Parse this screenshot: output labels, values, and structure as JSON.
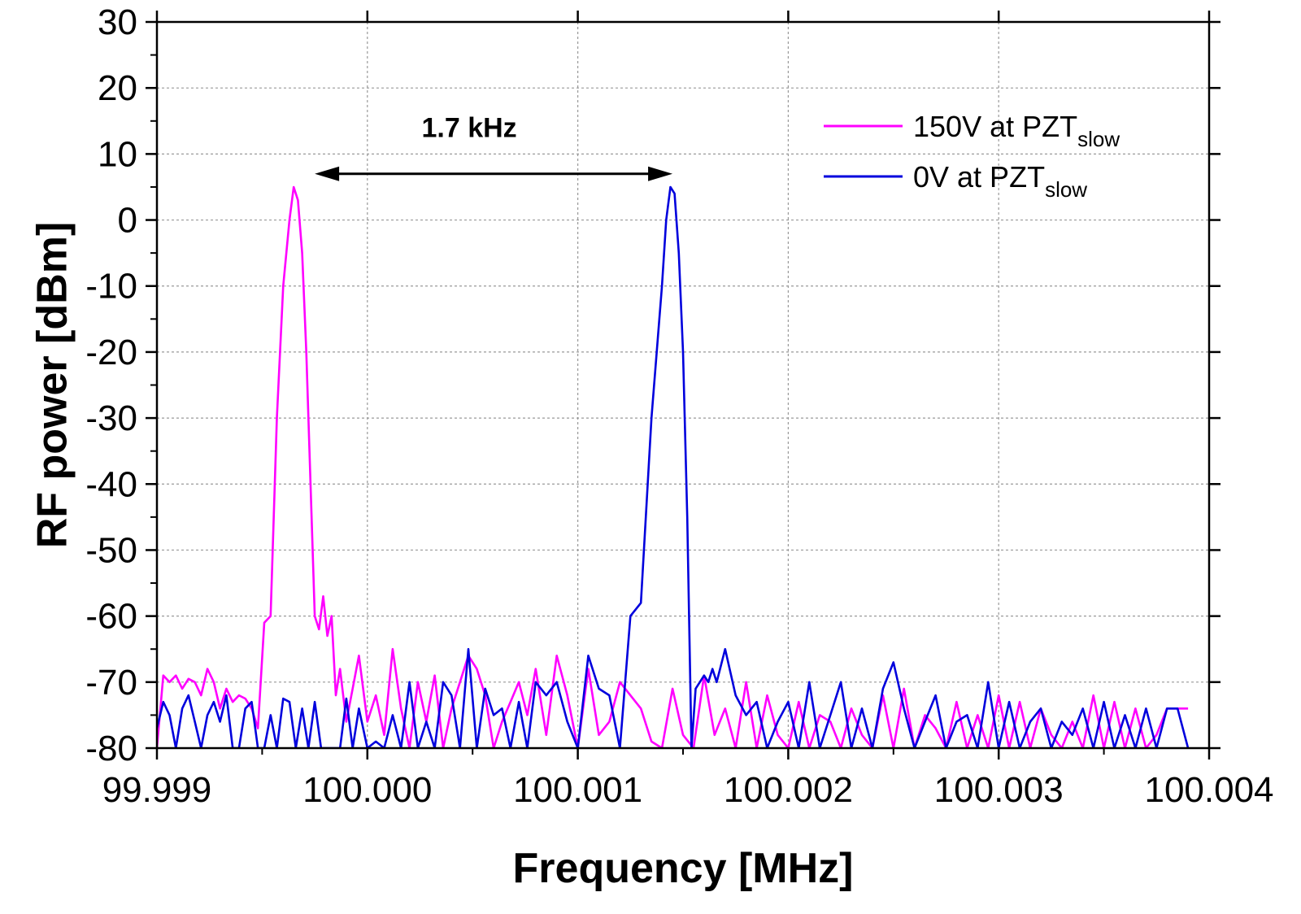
{
  "chart_data": {
    "type": "line",
    "xlabel": "Frequency [MHz]",
    "ylabel": "RF power [dBm]",
    "xlim": [
      99.999,
      100.004
    ],
    "ylim": [
      -80,
      30
    ],
    "xticks": [
      "99.999",
      "100.000",
      "100.001",
      "100.002",
      "100.003",
      "100.004"
    ],
    "yticks": [
      "30",
      "20",
      "10",
      "0",
      "-10",
      "-20",
      "-30",
      "-40",
      "-50",
      "-60",
      "-70",
      "-80"
    ],
    "grid": true,
    "legend_position": "top-right",
    "annotation": {
      "text": "1.7 kHz",
      "arrow_from": 99.99975,
      "arrow_to": 100.00145,
      "arrow_y": 7
    },
    "series": [
      {
        "name": "150V at PZT",
        "name_subscript": "slow",
        "color": "#ff00ff",
        "x": [
          99.999,
          99.99903,
          99.99906,
          99.99909,
          99.99912,
          99.99915,
          99.99918,
          99.99921,
          99.99924,
          99.99927,
          99.9993,
          99.99933,
          99.99936,
          99.99939,
          99.99942,
          99.99945,
          99.99948,
          99.99951,
          99.99954,
          99.99957,
          99.9996,
          99.99963,
          99.99965,
          99.99967,
          99.99969,
          99.99971,
          99.99973,
          99.99975,
          99.99977,
          99.99979,
          99.99981,
          99.99983,
          99.99985,
          99.99987,
          99.9999,
          99.99993,
          99.99996,
          100.0,
          100.00004,
          100.00008,
          100.00012,
          100.00016,
          100.0002,
          100.00024,
          100.00028,
          100.00032,
          100.00036,
          100.0004,
          100.00044,
          100.00048,
          100.00052,
          100.00056,
          100.0006,
          100.00064,
          100.00068,
          100.00072,
          100.00076,
          100.0008,
          100.00085,
          100.0009,
          100.00095,
          100.001,
          100.00105,
          100.0011,
          100.00115,
          100.0012,
          100.00125,
          100.0013,
          100.00135,
          100.0014,
          100.00145,
          100.0015,
          100.00155,
          100.0016,
          100.00165,
          100.0017,
          100.00175,
          100.0018,
          100.00185,
          100.0019,
          100.00195,
          100.002,
          100.00205,
          100.0021,
          100.00215,
          100.0022,
          100.00225,
          100.0023,
          100.00235,
          100.0024,
          100.00245,
          100.0025,
          100.00255,
          100.0026,
          100.00265,
          100.0027,
          100.00275,
          100.0028,
          100.00285,
          100.0029,
          100.00295,
          100.003,
          100.00305,
          100.0031,
          100.00315,
          100.0032,
          100.00325,
          100.0033,
          100.00335,
          100.0034,
          100.00345,
          100.0035,
          100.00355,
          100.0036,
          100.00365,
          100.0037,
          100.00375,
          100.0038,
          100.00385,
          100.0039
        ],
        "y": [
          -80,
          -69,
          -70,
          -69,
          -71,
          -69.5,
          -70,
          -72,
          -68,
          -70,
          -74,
          -71,
          -73,
          -72,
          -72.5,
          -74,
          -77,
          -61,
          -60,
          -30,
          -10,
          0,
          5,
          3,
          -5,
          -20,
          -40,
          -60,
          -62,
          -57,
          -63,
          -60,
          -72,
          -68,
          -76,
          -71,
          -66,
          -76,
          -72,
          -78,
          -65,
          -74,
          -80,
          -70,
          -76,
          -69,
          -80,
          -74,
          -70,
          -66,
          -68,
          -72,
          -80,
          -76,
          -73,
          -70,
          -75,
          -68,
          -78,
          -66,
          -72,
          -80,
          -68,
          -78,
          -76,
          -70,
          -72,
          -74,
          -79,
          -80,
          -71,
          -78,
          -80,
          -69,
          -78,
          -74,
          -80,
          -70,
          -80,
          -72,
          -78,
          -80,
          -73,
          -80,
          -75,
          -76,
          -80,
          -74,
          -78,
          -80,
          -72,
          -80,
          -71,
          -80,
          -75,
          -77,
          -80,
          -73,
          -80,
          -75,
          -80,
          -72,
          -80,
          -73,
          -80,
          -74,
          -78,
          -80,
          -76,
          -80,
          -72,
          -80,
          -73,
          -80,
          -74,
          -80,
          -78,
          -74,
          -74,
          -74
        ]
      },
      {
        "name": "0V at PZT",
        "name_subscript": "slow",
        "color": "#0000dd",
        "x": [
          99.999,
          99.99903,
          99.99906,
          99.99909,
          99.99912,
          99.99915,
          99.99918,
          99.99921,
          99.99924,
          99.99927,
          99.9993,
          99.99933,
          99.99936,
          99.99939,
          99.99942,
          99.99945,
          99.99948,
          99.99951,
          99.99954,
          99.99957,
          99.9996,
          99.99963,
          99.99966,
          99.99969,
          99.99972,
          99.99975,
          99.99978,
          99.99981,
          99.99984,
          99.99987,
          99.9999,
          99.99993,
          99.99996,
          100.0,
          100.00004,
          100.00008,
          100.00012,
          100.00016,
          100.0002,
          100.00024,
          100.00028,
          100.00032,
          100.00036,
          100.0004,
          100.00044,
          100.00048,
          100.00052,
          100.00056,
          100.0006,
          100.00064,
          100.00068,
          100.00072,
          100.00076,
          100.0008,
          100.00085,
          100.0009,
          100.00095,
          100.001,
          100.00105,
          100.0011,
          100.00115,
          100.0012,
          100.00125,
          100.0013,
          100.00135,
          100.0014,
          100.00142,
          100.00144,
          100.00146,
          100.00148,
          100.0015,
          100.00152,
          100.00154,
          100.00156,
          100.00158,
          100.0016,
          100.00162,
          100.00164,
          100.00166,
          100.0017,
          100.00175,
          100.0018,
          100.00185,
          100.0019,
          100.00195,
          100.002,
          100.00205,
          100.0021,
          100.00215,
          100.0022,
          100.00225,
          100.0023,
          100.00235,
          100.0024,
          100.00245,
          100.0025,
          100.00255,
          100.0026,
          100.00265,
          100.0027,
          100.00275,
          100.0028,
          100.00285,
          100.0029,
          100.00295,
          100.003,
          100.00305,
          100.0031,
          100.00315,
          100.0032,
          100.00325,
          100.0033,
          100.00335,
          100.0034,
          100.00345,
          100.0035,
          100.00355,
          100.0036,
          100.00365,
          100.0037,
          100.00375,
          100.0038,
          100.00385,
          100.0039
        ],
        "y": [
          -77,
          -73,
          -75,
          -80,
          -74,
          -72,
          -76,
          -80,
          -75,
          -73,
          -76,
          -72,
          -80,
          -80,
          -74,
          -73,
          -80,
          -80,
          -75,
          -80,
          -72.5,
          -73,
          -80,
          -74,
          -80,
          -73,
          -80,
          -80,
          -80,
          -80,
          -72.5,
          -80,
          -74,
          -80,
          -79,
          -80,
          -75,
          -80,
          -70,
          -80,
          -76,
          -80,
          -70,
          -72,
          -80,
          -65,
          -80,
          -71,
          -75,
          -74,
          -80,
          -73,
          -80,
          -70,
          -72,
          -70,
          -76,
          -80,
          -66,
          -71,
          -72,
          -80,
          -60,
          -58,
          -30,
          -10,
          0,
          5,
          4,
          -5,
          -20,
          -45,
          -80,
          -71,
          -70,
          -69,
          -70,
          -68,
          -70,
          -65,
          -72,
          -75,
          -73,
          -80,
          -76,
          -73,
          -80,
          -70,
          -80,
          -75,
          -70,
          -80,
          -74,
          -80,
          -71,
          -67,
          -74,
          -80,
          -76,
          -72,
          -80,
          -76,
          -75,
          -80,
          -70,
          -80,
          -73,
          -80,
          -76,
          -74,
          -80,
          -76,
          -78,
          -74,
          -80,
          -73,
          -80,
          -75,
          -80,
          -74,
          -80,
          -74,
          -74,
          -80
        ]
      }
    ]
  }
}
